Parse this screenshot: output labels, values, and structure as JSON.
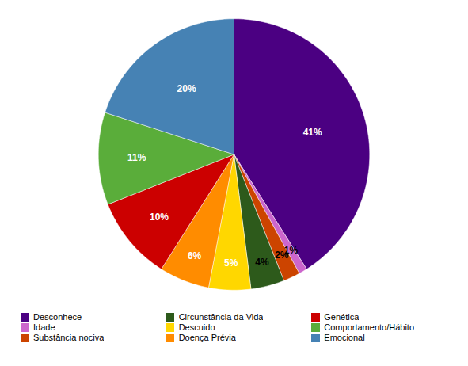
{
  "chart_data": {
    "type": "pie",
    "categories": [
      "Desconhece",
      "Idade",
      "Substância nociva",
      "Circunstância da Vida",
      "Descuido",
      "Doença Prévia",
      "Genética",
      "Comportamento/Hábito",
      "Emocional"
    ],
    "values": [
      41,
      1,
      2,
      4,
      5,
      6,
      10,
      11,
      20
    ],
    "value_labels": [
      "41%",
      "1%",
      "2%",
      "4%",
      "5%",
      "6%",
      "10%",
      "11%",
      "20%"
    ],
    "colors": [
      "#4B0082",
      "#CC66CC",
      "#CC4400",
      "#2d5a1b",
      "#FFD700",
      "#FF8C00",
      "#CC0000",
      "#5aad3a",
      "#4682B4"
    ],
    "data_labels": true,
    "legend": "bottom"
  }
}
